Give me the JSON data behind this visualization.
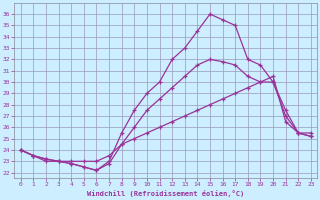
{
  "xlabel": "Windchill (Refroidissement éolien,°C)",
  "bg_color": "#cceeff",
  "line_color": "#993399",
  "grid_color": "#9999bb",
  "xlim": [
    -0.5,
    23.5
  ],
  "ylim": [
    21.5,
    37.0
  ],
  "xticks": [
    0,
    1,
    2,
    3,
    4,
    5,
    6,
    7,
    8,
    9,
    10,
    11,
    12,
    13,
    14,
    15,
    16,
    17,
    18,
    19,
    20,
    21,
    22,
    23
  ],
  "yticks": [
    22,
    23,
    24,
    25,
    26,
    27,
    28,
    29,
    30,
    31,
    32,
    33,
    34,
    35,
    36
  ],
  "line1_x": [
    0,
    1,
    2,
    3,
    4,
    5,
    6,
    7,
    8,
    9,
    10,
    11,
    12,
    13,
    14,
    15,
    16,
    17,
    18,
    19,
    20,
    21,
    22,
    23
  ],
  "line1_y": [
    24.0,
    23.5,
    23.2,
    23.0,
    22.8,
    22.5,
    22.2,
    23.0,
    25.5,
    27.5,
    29.0,
    30.0,
    32.0,
    33.0,
    34.5,
    36.0,
    35.5,
    35.0,
    32.0,
    31.5,
    30.0,
    27.5,
    25.5,
    25.2
  ],
  "line2_x": [
    0,
    1,
    2,
    3,
    4,
    5,
    6,
    7,
    8,
    9,
    10,
    11,
    12,
    13,
    14,
    15,
    16,
    17,
    18,
    19,
    20,
    21,
    22,
    23
  ],
  "line2_y": [
    24.0,
    23.5,
    23.2,
    23.0,
    22.8,
    22.5,
    22.2,
    22.8,
    24.5,
    26.0,
    27.5,
    28.5,
    29.5,
    30.5,
    31.5,
    32.0,
    31.8,
    31.5,
    30.5,
    30.0,
    30.0,
    27.0,
    25.5,
    25.2
  ],
  "line3_x": [
    0,
    1,
    2,
    3,
    4,
    5,
    6,
    7,
    8,
    9,
    10,
    11,
    12,
    13,
    14,
    15,
    16,
    17,
    18,
    19,
    20,
    21,
    22,
    23
  ],
  "line3_y": [
    24.0,
    23.5,
    23.0,
    23.0,
    23.0,
    23.0,
    23.0,
    23.5,
    24.5,
    25.0,
    25.5,
    26.0,
    26.5,
    27.0,
    27.5,
    28.0,
    28.5,
    29.0,
    29.5,
    30.0,
    30.5,
    26.5,
    25.5,
    25.5
  ]
}
